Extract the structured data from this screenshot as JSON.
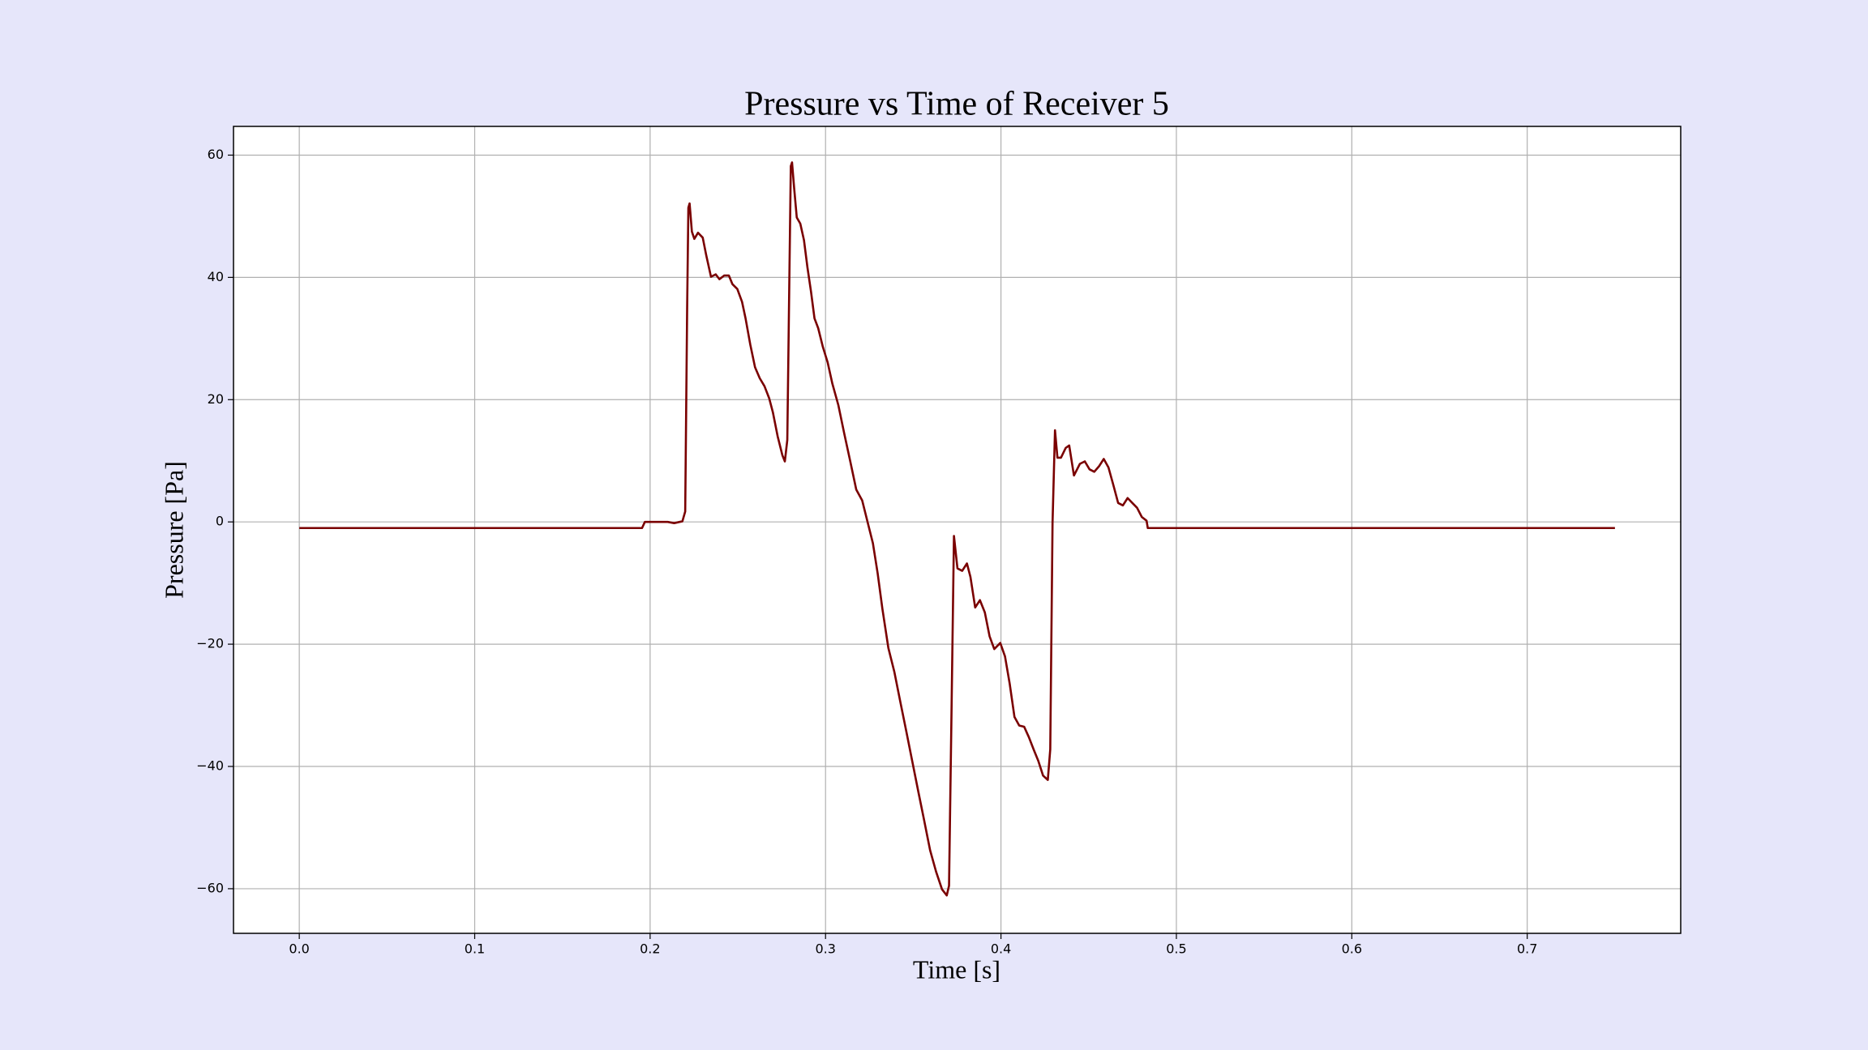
{
  "chart_data": {
    "type": "line",
    "title": "Pressure vs Time of Receiver 5",
    "x_label": "Time [s]",
    "y_label": "Pressure [Pa]",
    "color": "#7a0000",
    "grid": true,
    "xlim": [
      -0.0375,
      0.7875
    ],
    "ylim": [
      -67.3,
      64.7
    ],
    "xticks": [
      {
        "value": 0,
        "label": "0.0"
      },
      0.1,
      0.2,
      0.3,
      0.4,
      0.5,
      0.6,
      0.7
    ],
    "yticks": [
      {
        "value": -60,
        "label": "−60"
      },
      {
        "value": -40,
        "label": "−40"
      },
      {
        "value": -20,
        "label": "−20"
      },
      0,
      20,
      40,
      60
    ],
    "x": [
      0,
      0.1954,
      0.197,
      0.21,
      0.2137,
      0.2184,
      0.22,
      0.2211,
      0.2218,
      0.2225,
      0.2238,
      0.2252,
      0.2273,
      0.23,
      0.232,
      0.2347,
      0.2374,
      0.2395,
      0.2422,
      0.2449,
      0.2469,
      0.2497,
      0.2524,
      0.2544,
      0.2571,
      0.2598,
      0.2625,
      0.2652,
      0.2679,
      0.27,
      0.2727,
      0.2754,
      0.2768,
      0.2782,
      0.2795,
      0.2802,
      0.2809,
      0.2822,
      0.2836,
      0.2856,
      0.2877,
      0.2897,
      0.2917,
      0.2937,
      0.2958,
      0.2985,
      0.3012,
      0.3039,
      0.3073,
      0.3107,
      0.3141,
      0.3175,
      0.3209,
      0.3236,
      0.327,
      0.3297,
      0.3324,
      0.3358,
      0.3392,
      0.3426,
      0.346,
      0.3494,
      0.3528,
      0.3562,
      0.3596,
      0.363,
      0.3664,
      0.3691,
      0.3704,
      0.3718,
      0.3732,
      0.3752,
      0.3779,
      0.3806,
      0.3826,
      0.3853,
      0.388,
      0.3908,
      0.3935,
      0.3962,
      0.3996,
      0.4023,
      0.405,
      0.4077,
      0.4104,
      0.4132,
      0.4159,
      0.4186,
      0.4213,
      0.424,
      0.4267,
      0.4281,
      0.4294,
      0.4308,
      0.4322,
      0.4342,
      0.4369,
      0.4389,
      0.4416,
      0.445,
      0.4478,
      0.4505,
      0.4532,
      0.4559,
      0.4586,
      0.4613,
      0.4641,
      0.4668,
      0.4695,
      0.4722,
      0.4749,
      0.4776,
      0.4803,
      0.483,
      0.4837,
      0.75
    ],
    "values": [
      -1.0,
      -1.0,
      0,
      0,
      -0.2,
      0.1,
      1.7,
      34.8,
      51.4,
      52.1,
      47.5,
      46.3,
      47.3,
      46.5,
      43.6,
      40.1,
      40.5,
      39.7,
      40.3,
      40.3,
      38.9,
      38.1,
      36.0,
      33.3,
      29.0,
      25.3,
      23.5,
      22.2,
      20.2,
      17.9,
      14.0,
      10.9,
      9.9,
      13.4,
      42.6,
      58.2,
      58.8,
      54.3,
      49.8,
      48.8,
      46.1,
      41.6,
      37.7,
      33.3,
      31.7,
      28.6,
      26.1,
      22.6,
      19.1,
      14.4,
      9.9,
      5.3,
      3.5,
      0.4,
      -3.5,
      -8.4,
      -14.2,
      -20.6,
      -24.5,
      -29.4,
      -34.2,
      -39.1,
      -44.0,
      -48.8,
      -53.7,
      -57.2,
      -60.1,
      -61.1,
      -59.5,
      -31.3,
      -2.3,
      -7.6,
      -8.0,
      -6.8,
      -9.0,
      -14.0,
      -12.8,
      -14.8,
      -18.7,
      -20.8,
      -19.8,
      -22.0,
      -26.5,
      -31.9,
      -33.3,
      -33.5,
      -35.2,
      -37.2,
      -39.1,
      -41.5,
      -42.2,
      -37.2,
      -0.2,
      15.0,
      10.5,
      10.5,
      12.1,
      12.5,
      7.6,
      9.5,
      9.9,
      8.6,
      8.2,
      9.1,
      10.3,
      8.9,
      6.0,
      3.1,
      2.7,
      3.9,
      3.1,
      2.3,
      0.8,
      0.2,
      -1.0,
      -1.0
    ]
  }
}
